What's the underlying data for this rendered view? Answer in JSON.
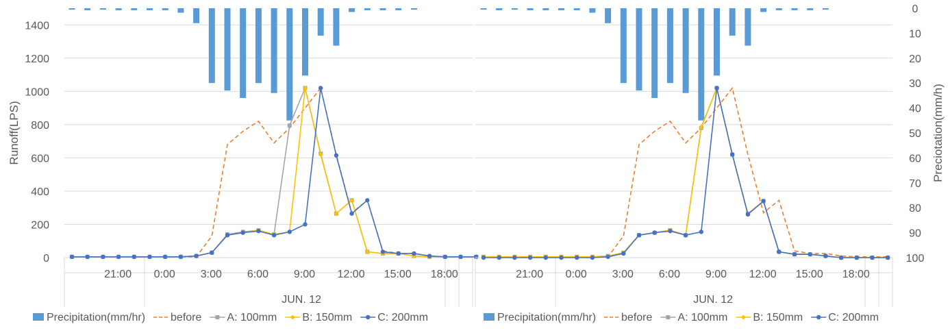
{
  "chart_data": [
    {
      "type": "bar+line",
      "x_hours": [
        18,
        19,
        20,
        21,
        22,
        23,
        0,
        1,
        2,
        3,
        4,
        5,
        6,
        7,
        8,
        9,
        10,
        11,
        12,
        13,
        14,
        15,
        16,
        17,
        18,
        19,
        20
      ],
      "xticks": [
        "21:00",
        "0:00",
        "3:00",
        "6:00",
        "9:00",
        "12:00",
        "15:00",
        "18:00"
      ],
      "xtick_hours": [
        21,
        0,
        3,
        6,
        9,
        12,
        15,
        18
      ],
      "xtick_index": [
        3,
        6,
        9,
        12,
        15,
        18,
        21,
        24
      ],
      "date_label": "JUN. 12",
      "ylabel": "Runoff(LPS)",
      "ylim": [
        0,
        1500
      ],
      "yticks": [
        "0",
        "200",
        "400",
        "600",
        "800",
        "1000",
        "1200",
        "1400"
      ],
      "y2label": "Preciotation(mm/h)",
      "y2lim": [
        0,
        100
      ],
      "y2_reversed": true,
      "y2ticks": [
        "0",
        "10",
        "20",
        "30",
        "40",
        "50",
        "60",
        "70",
        "80",
        "90",
        "100"
      ],
      "show_left_axis": true,
      "show_right_axis": false,
      "series": [
        {
          "name": "Precipitation(mm/hr)",
          "kind": "bar",
          "axis": "y2",
          "color": "#5b9bd5",
          "values": [
            0.3,
            0.8,
            0.3,
            0.8,
            0.8,
            0.8,
            0.8,
            1.8,
            6,
            30,
            33,
            36,
            30,
            34,
            45,
            27,
            11,
            15,
            1.5,
            0.8,
            0.8,
            0.8,
            0.3,
            0,
            0,
            0,
            0
          ]
        },
        {
          "name": "before",
          "kind": "line",
          "style": "dashed",
          "color": "#ed7d31",
          "marker": "none",
          "values": [
            5,
            5,
            5,
            5,
            5,
            5,
            5,
            5,
            5,
            130,
            680,
            760,
            820,
            690,
            780,
            900,
            1020,
            620,
            270,
            345,
            40,
            25,
            25,
            10,
            5,
            5,
            5
          ]
        },
        {
          "name": "A: 100mm",
          "kind": "line",
          "color": "#a5a5a5",
          "marker": "square",
          "values": [
            5,
            5,
            5,
            5,
            5,
            5,
            5,
            5,
            10,
            30,
            140,
            155,
            165,
            140,
            795,
            1020,
            625,
            265,
            345,
            35,
            25,
            25,
            10,
            5,
            5,
            5,
            5
          ]
        },
        {
          "name": "B: 150mm",
          "kind": "line",
          "color": "#ffc000",
          "marker": "diamond",
          "values": [
            5,
            5,
            5,
            5,
            5,
            5,
            5,
            5,
            10,
            30,
            135,
            150,
            165,
            140,
            155,
            1020,
            620,
            265,
            345,
            35,
            25,
            25,
            10,
            5,
            5,
            5,
            5
          ]
        },
        {
          "name": "C: 200mm",
          "kind": "line",
          "color": "#4472c4",
          "marker": "circle",
          "values": [
            5,
            5,
            5,
            5,
            5,
            5,
            5,
            5,
            10,
            30,
            135,
            150,
            160,
            135,
            155,
            200,
            1020,
            615,
            265,
            345,
            35,
            25,
            25,
            10,
            5,
            5,
            5
          ]
        }
      ]
    },
    {
      "type": "bar+line",
      "x_hours": [
        18,
        19,
        20,
        21,
        22,
        23,
        0,
        1,
        2,
        3,
        4,
        5,
        6,
        7,
        8,
        9,
        10,
        11,
        12,
        13,
        14,
        15,
        16,
        17,
        18,
        19,
        20
      ],
      "xticks": [
        "21:00",
        "0:00",
        "3:00",
        "6:00",
        "9:00",
        "12:00",
        "15:00",
        "18:00"
      ],
      "xtick_hours": [
        21,
        0,
        3,
        6,
        9,
        12,
        15,
        18
      ],
      "xtick_index": [
        3,
        6,
        9,
        12,
        15,
        18,
        21,
        24
      ],
      "date_label": "JUN. 12",
      "ylabel": "Runoff(LPS)",
      "ylim": [
        0,
        1500
      ],
      "yticks": [
        "0",
        "200",
        "400",
        "600",
        "800",
        "1000",
        "1200",
        "1400"
      ],
      "y2label": "Preciotation(mm/h)",
      "y2lim": [
        0,
        100
      ],
      "y2_reversed": true,
      "y2ticks": [
        "0",
        "10",
        "20",
        "30",
        "40",
        "50",
        "60",
        "70",
        "80",
        "90",
        "100"
      ],
      "show_left_axis": false,
      "show_right_axis": true,
      "series": [
        {
          "name": "Precipitation(mm/hr)",
          "kind": "bar",
          "axis": "y2",
          "color": "#5b9bd5",
          "values": [
            0.3,
            0.8,
            0.3,
            0.8,
            0.8,
            0.8,
            0.8,
            1.8,
            6,
            30,
            33,
            36,
            30,
            34,
            45,
            27,
            11,
            15,
            1.5,
            0.8,
            0.8,
            0.8,
            0.3,
            0,
            0,
            0,
            0
          ]
        },
        {
          "name": "before",
          "kind": "line",
          "style": "dashed",
          "color": "#ed7d31",
          "marker": "none",
          "values": [
            5,
            5,
            5,
            5,
            5,
            5,
            5,
            5,
            5,
            130,
            680,
            760,
            820,
            690,
            780,
            900,
            1020,
            620,
            270,
            345,
            40,
            25,
            25,
            10,
            5,
            5,
            5
          ]
        },
        {
          "name": "A: 100mm",
          "kind": "line",
          "color": "#a5a5a5",
          "marker": "square",
          "values": [
            5,
            5,
            5,
            5,
            5,
            5,
            5,
            5,
            10,
            30,
            135,
            150,
            165,
            135,
            780,
            1020,
            620,
            265,
            340,
            35,
            20,
            20,
            10,
            0,
            0,
            0,
            0
          ]
        },
        {
          "name": "B: 150mm",
          "kind": "line",
          "color": "#ffc000",
          "marker": "diamond",
          "values": [
            5,
            5,
            5,
            5,
            5,
            5,
            5,
            5,
            10,
            30,
            135,
            150,
            165,
            135,
            785,
            1020,
            620,
            265,
            340,
            35,
            20,
            20,
            10,
            0,
            0,
            0,
            0
          ]
        },
        {
          "name": "C: 200mm",
          "kind": "line",
          "color": "#4472c4",
          "marker": "circle",
          "values": [
            0,
            0,
            0,
            0,
            0,
            0,
            0,
            0,
            5,
            25,
            135,
            150,
            160,
            135,
            155,
            1020,
            620,
            260,
            340,
            35,
            20,
            20,
            10,
            0,
            0,
            0,
            0
          ]
        }
      ]
    }
  ]
}
